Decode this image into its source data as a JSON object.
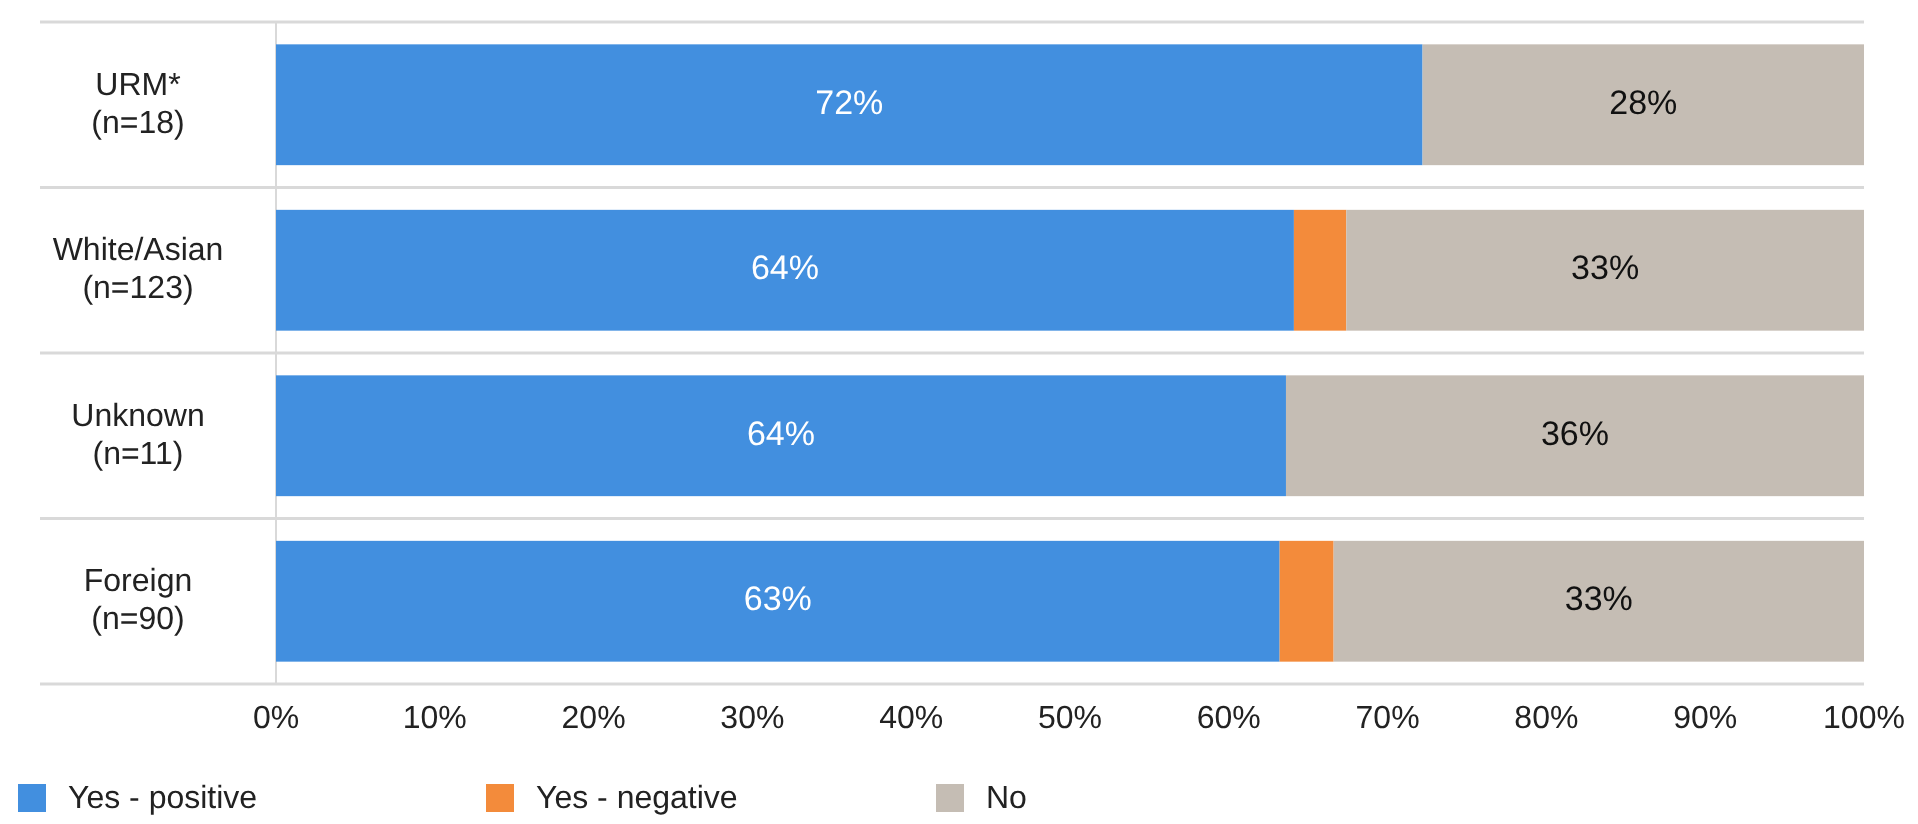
{
  "chart_data": {
    "type": "bar",
    "orientation": "horizontal",
    "stacked": true,
    "categories": [
      "URM*\n(n=18)",
      "White/Asian\n(n=123)",
      "Unknown\n(n=11)",
      "Foreign\n(n=90)"
    ],
    "series": [
      {
        "name": "Yes - positive",
        "color": "#428fdf",
        "values": [
          72.2,
          64.1,
          63.6,
          63.2
        ],
        "value_labels": [
          "72%",
          "64%",
          "64%",
          "63%"
        ]
      },
      {
        "name": "Yes - negative",
        "color": "#f38b3b",
        "values": [
          null,
          3.3,
          null,
          3.4
        ],
        "value_labels": [
          null,
          null,
          null,
          null
        ]
      },
      {
        "name": "No",
        "color": "#c5bdb4",
        "values": [
          27.8,
          32.6,
          36.4,
          33.4
        ],
        "value_labels": [
          "28%",
          "33%",
          "36%",
          "33%"
        ]
      }
    ],
    "xlim": [
      0,
      100
    ],
    "xticks": [
      {
        "value": 0,
        "label": "0%"
      },
      {
        "value": 10,
        "label": "10%"
      },
      {
        "value": 20,
        "label": "20%"
      },
      {
        "value": 30,
        "label": "30%"
      },
      {
        "value": 40,
        "label": "40%"
      },
      {
        "value": 50,
        "label": "50%"
      },
      {
        "value": 60,
        "label": "60%"
      },
      {
        "value": 70,
        "label": "70%"
      },
      {
        "value": 80,
        "label": "80%"
      },
      {
        "value": 90,
        "label": "90%"
      },
      {
        "value": 100,
        "label": "100%"
      }
    ],
    "legend": "bottom left"
  }
}
